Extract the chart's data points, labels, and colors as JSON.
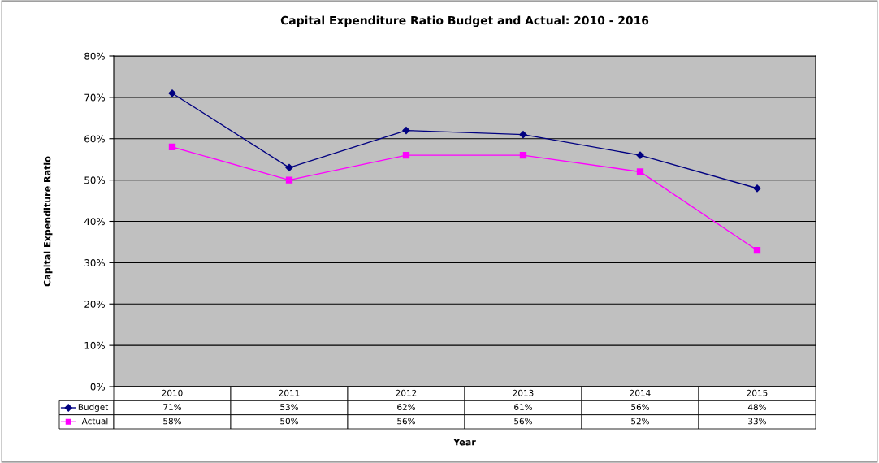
{
  "chart_data": {
    "type": "line",
    "title": "Capital Expenditure Ratio Budget and Actual: 2010 - 2016",
    "xlabel": "Year",
    "ylabel": "Capital Expenditure Ratio",
    "categories": [
      "2010",
      "2011",
      "2012",
      "2013",
      "2014",
      "2015"
    ],
    "series": [
      {
        "name": "Budget",
        "color": "#000080",
        "marker": "diamond",
        "values": [
          71,
          53,
          62,
          61,
          56,
          48
        ],
        "value_labels": [
          "71%",
          "53%",
          "62%",
          "61%",
          "56%",
          "48%"
        ]
      },
      {
        "name": "Actual",
        "color": "#ff00ff",
        "marker": "square",
        "values": [
          58,
          50,
          56,
          56,
          52,
          33
        ],
        "value_labels": [
          "58%",
          "50%",
          "56%",
          "56%",
          "52%",
          "33%"
        ]
      }
    ],
    "ylim": [
      0,
      80
    ],
    "yticks": [
      {
        "value": 0,
        "label": "0%"
      },
      {
        "value": 10,
        "label": "10%"
      },
      {
        "value": 20,
        "label": "20%"
      },
      {
        "value": 30,
        "label": "30%"
      },
      {
        "value": 40,
        "label": "40%"
      },
      {
        "value": 50,
        "label": "50%"
      },
      {
        "value": 60,
        "label": "60%"
      },
      {
        "value": 70,
        "label": "70%"
      },
      {
        "value": 80,
        "label": "80%"
      }
    ],
    "grid": "y",
    "legend": "bottom",
    "line_style": "solid"
  }
}
